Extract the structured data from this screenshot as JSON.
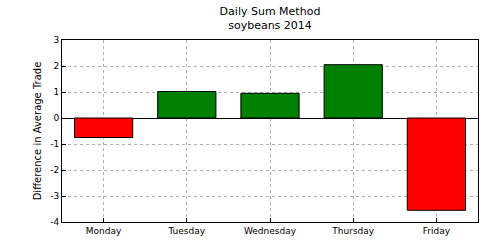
{
  "chart_data": {
    "type": "bar",
    "title": "Daily Sum Method\nsoybeans 2014",
    "y_label": "Difference in Average Trade",
    "categories": [
      "Monday",
      "Tuesday",
      "Wednesday",
      "Thursday",
      "Friday"
    ],
    "values": [
      -0.75,
      1.02,
      0.95,
      2.05,
      -3.55
    ],
    "colors": [
      "#ff0000",
      "#008000",
      "#008000",
      "#008000",
      "#ff0000"
    ],
    "ylim": [
      -4,
      3
    ],
    "yticks": [
      -4,
      -3,
      -2,
      -1,
      0,
      1,
      2,
      3
    ],
    "grid": true
  }
}
